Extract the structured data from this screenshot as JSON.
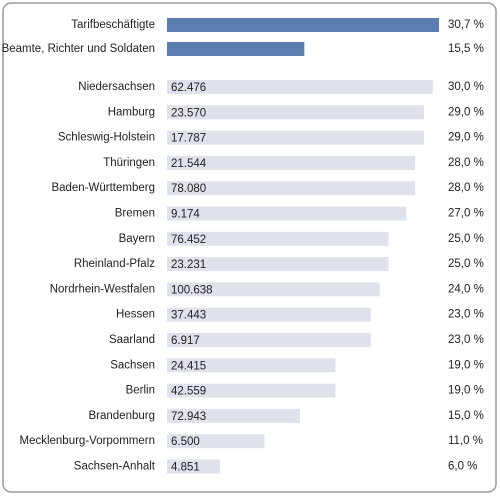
{
  "chart_data": {
    "type": "hbar",
    "categories": [
      "Tarifbeschäftigte",
      "Beamte, Richter und Soldaten",
      "Niedersachsen",
      "Hamburg",
      "Schleswig-Holstein",
      "Thüringen",
      "Baden-Württemberg",
      "Bremen",
      "Bayern",
      "Rheinland-Pfalz",
      "Nordrhein-Westfalen",
      "Hessen",
      "Saarland",
      "Sachsen",
      "Berlin",
      "Brandenburg",
      "Mecklenburg-Vorpommern",
      "Sachsen-Anhalt"
    ],
    "values": [
      30.7,
      15.5,
      30.0,
      29.0,
      29.0,
      28.0,
      28.0,
      27.0,
      25.0,
      25.0,
      24.0,
      23.0,
      23.0,
      19.0,
      19.0,
      15.0,
      11.0,
      6.0
    ],
    "value_labels": [
      "30,7 %",
      "15,5 %",
      "30,0 %",
      "29,0 %",
      "29,0 %",
      "28,0 %",
      "28,0 %",
      "27,0 %",
      "25,0 %",
      "25,0 %",
      "24,0 %",
      "23,0 %",
      "23,0 %",
      "19,0 %",
      "19,0 %",
      "15,0 %",
      "11,0 %",
      "6,0 %"
    ],
    "counts": [
      null,
      null,
      "62.476",
      "23.570",
      "17.787",
      "21.544",
      "78.080",
      "9.174",
      "76.452",
      "23.231",
      "100.638",
      "37.443",
      "6.917",
      "24.415",
      "42.559",
      "72.943",
      "6.500",
      "4.851"
    ],
    "colors": [
      "#5b7db0",
      "#5b7db0",
      "#dfe2ea",
      "#dfe2ea",
      "#dfe2ea",
      "#dfe2ea",
      "#dfe2ea",
      "#dfe2ea",
      "#dfe2ea",
      "#dfe2ea",
      "#dfe2ea",
      "#dfe2ea",
      "#dfe2ea",
      "#dfe2ea",
      "#dfe2ea",
      "#dfe2ea",
      "#dfe2ea",
      "#dfe2ea"
    ]
  }
}
